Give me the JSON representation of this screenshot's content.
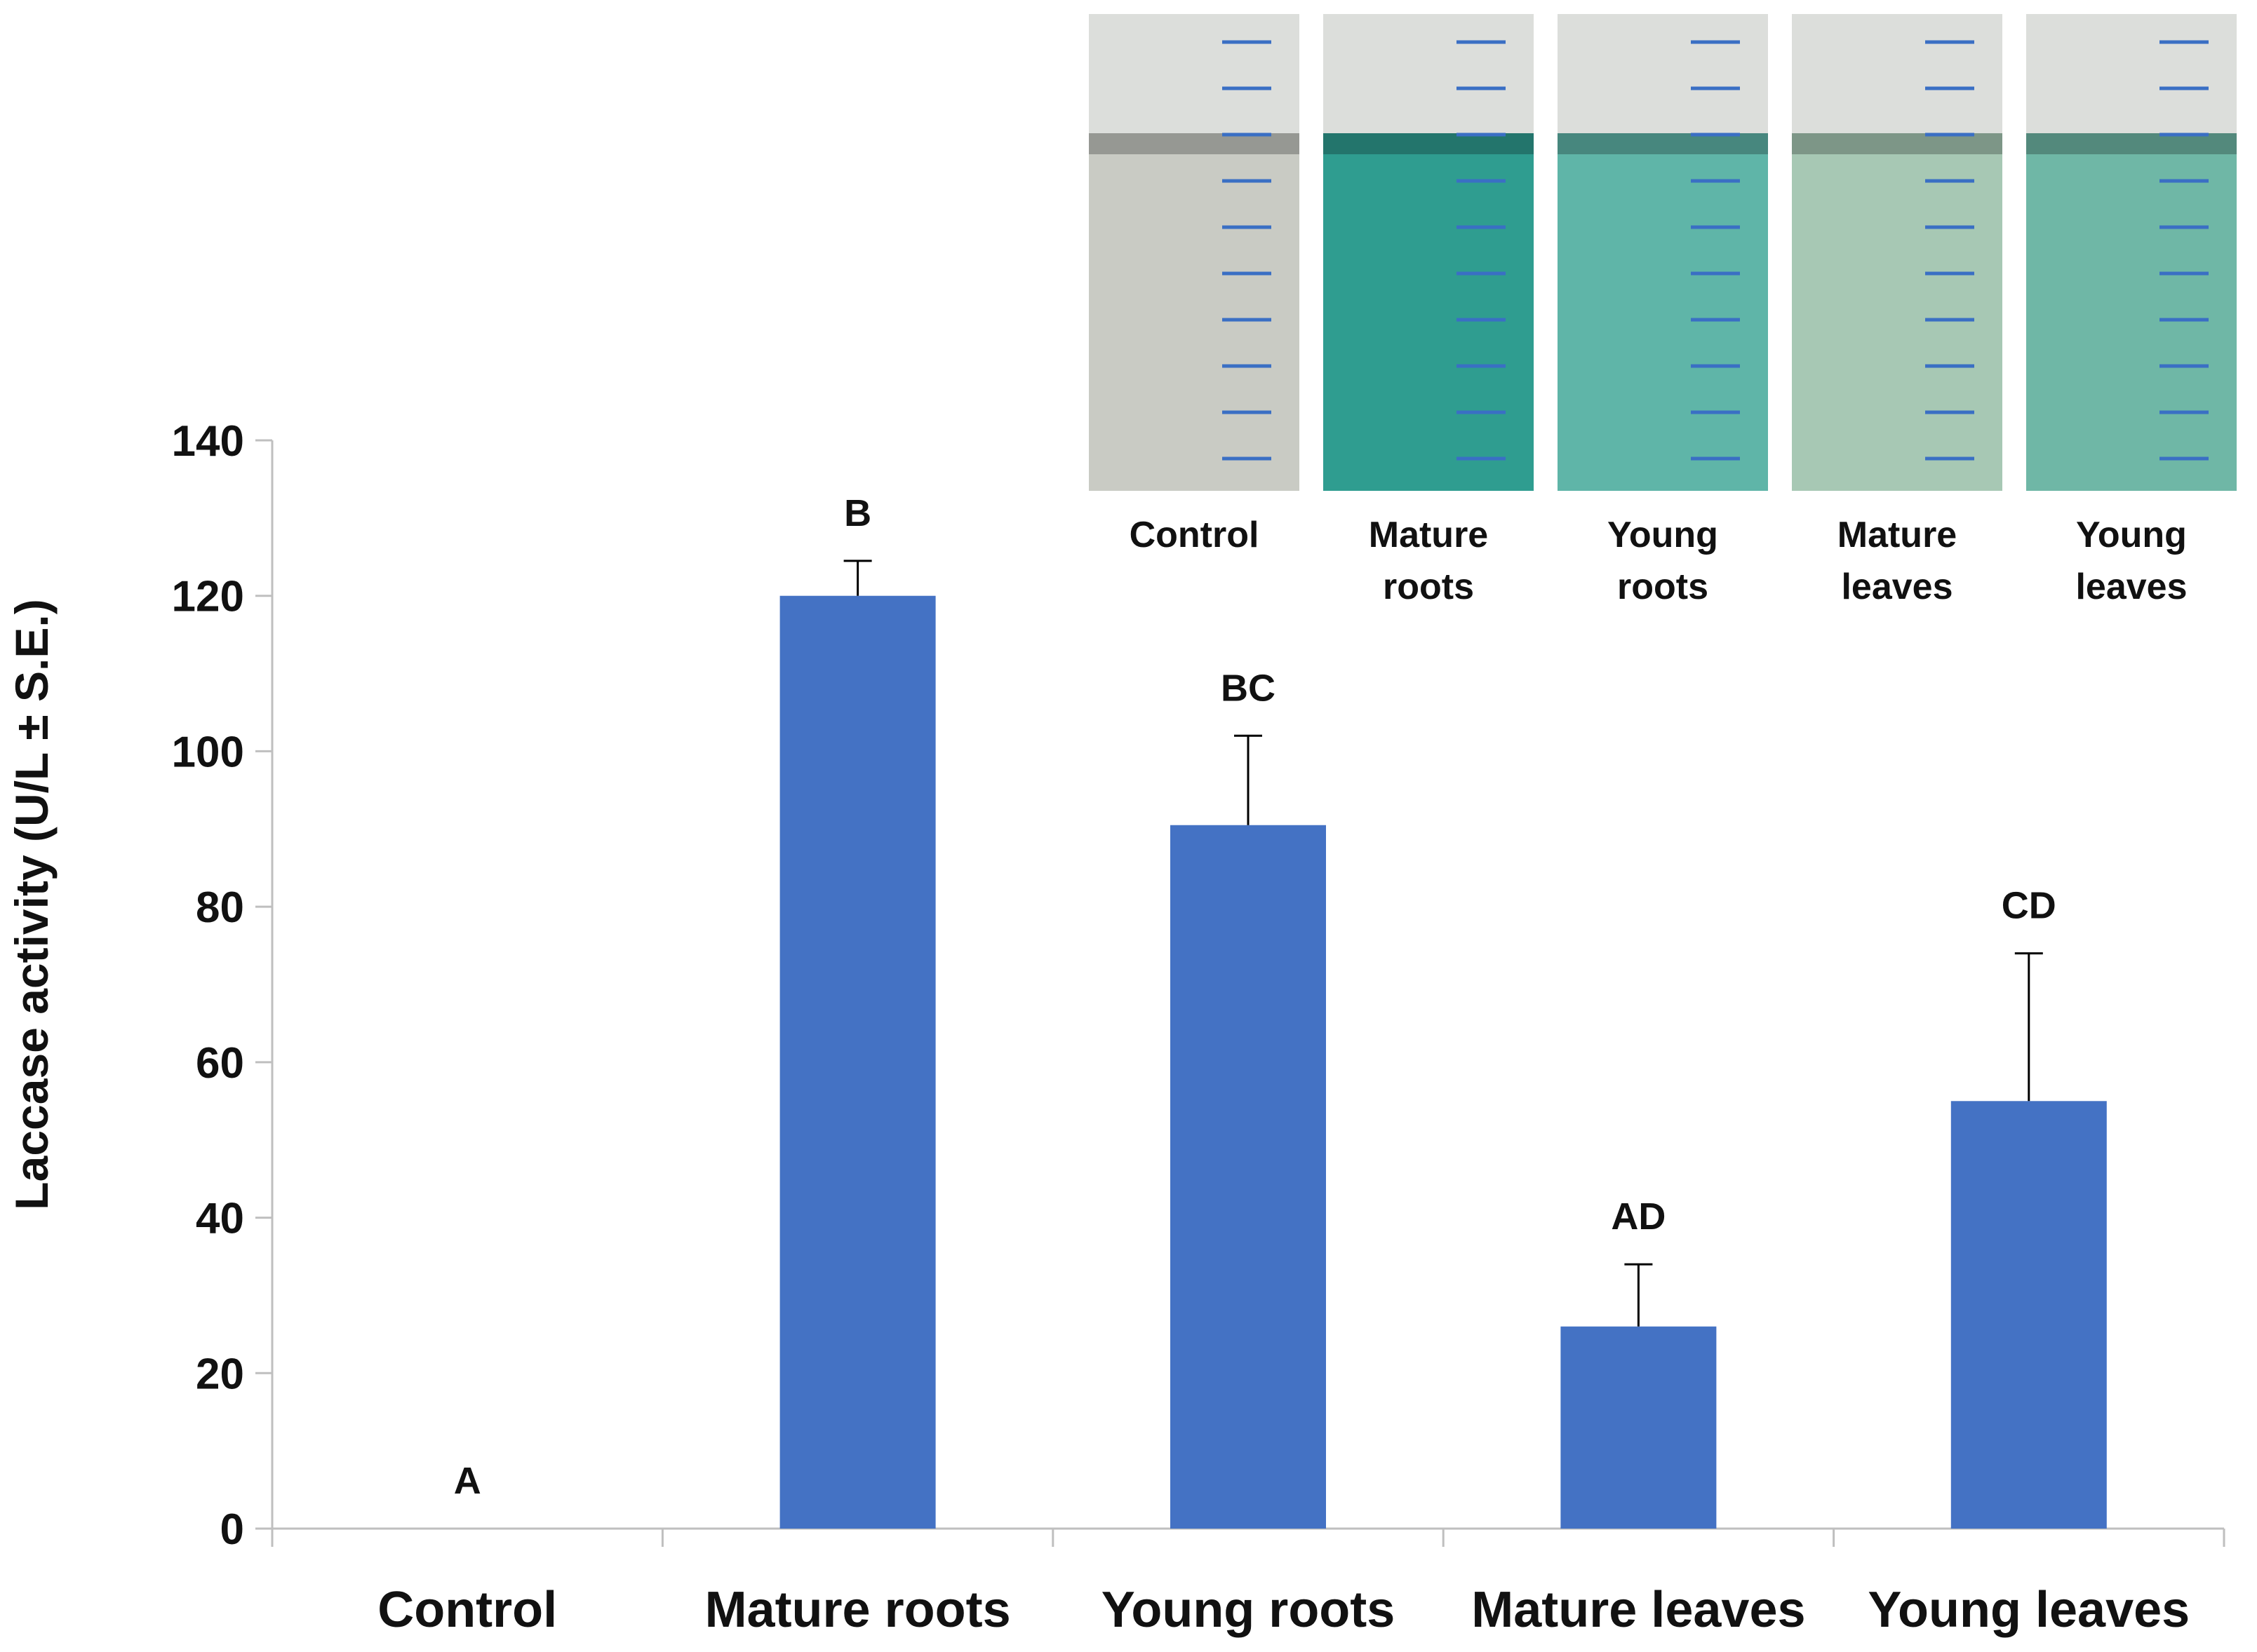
{
  "chart_data": {
    "type": "bar",
    "title": "",
    "xlabel": "",
    "ylabel": "Laccase activity (U/L ± S.E.)",
    "ylim": [
      0,
      140
    ],
    "yticks": [
      0,
      20,
      40,
      60,
      80,
      100,
      120,
      140
    ],
    "grid": false,
    "categories": [
      "Control",
      "Mature roots",
      "Young roots",
      "Mature leaves",
      "Young leaves"
    ],
    "values": [
      0,
      120,
      90.5,
      26,
      55
    ],
    "errors": [
      0,
      4.5,
      11.5,
      8,
      19
    ],
    "significance_letters": [
      "A",
      "B",
      "BC",
      "AD",
      "CD"
    ],
    "bar_color": "#4472C4"
  },
  "inset": {
    "description_labels": [
      "Control",
      "Mature roots",
      "Young roots",
      "Mature leaves",
      "Young leaves"
    ],
    "tube_colors": [
      "#c9cbc4",
      "#2f9d90",
      "#5fb5a8",
      "#a7c8b4",
      "#6fb7a6"
    ]
  }
}
